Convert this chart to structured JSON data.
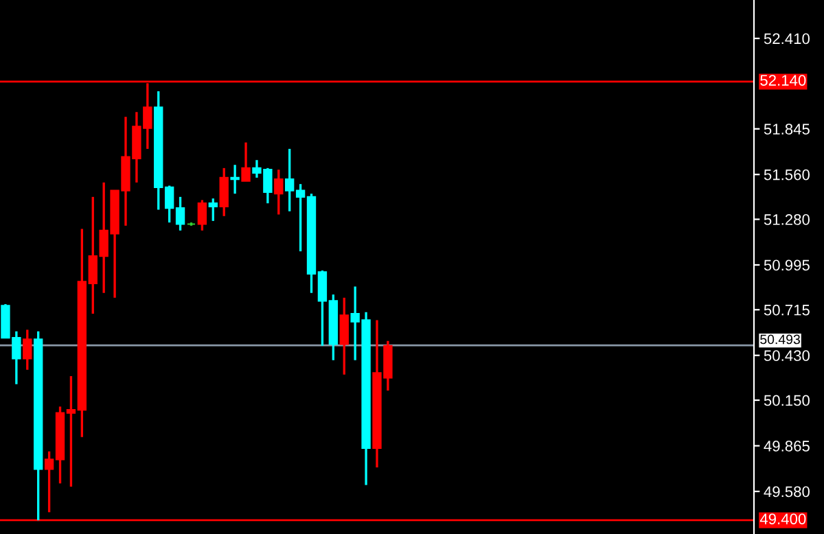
{
  "chart_data": {
    "type": "candlestick",
    "categories": [
      null,
      null,
      null,
      null,
      null,
      null,
      null,
      null,
      null,
      null,
      null,
      null,
      null,
      null,
      null,
      null,
      null,
      null,
      null,
      null,
      null,
      null,
      null,
      null,
      null,
      null,
      null,
      null,
      null,
      null,
      null,
      null,
      null,
      null,
      null,
      null,
      null,
      null,
      null,
      null,
      null,
      null,
      null,
      null,
      null,
      null,
      null,
      null,
      null,
      null,
      null,
      null,
      null,
      null,
      null,
      null,
      null,
      null,
      null,
      null,
      null,
      null,
      null,
      null,
      null,
      null,
      null,
      null,
      null
    ],
    "ohlc": [
      [
        50.74,
        50.75,
        50.54,
        50.54
      ],
      [
        50.54,
        50.58,
        50.25,
        50.41
      ],
      [
        50.41,
        50.59,
        50.34,
        50.53
      ],
      [
        50.53,
        50.58,
        49.4,
        49.72
      ],
      [
        49.72,
        49.83,
        49.45,
        49.78
      ],
      [
        49.78,
        50.11,
        49.63,
        50.07
      ],
      [
        50.07,
        50.3,
        49.61,
        50.09
      ],
      [
        50.09,
        51.22,
        49.92,
        50.89
      ],
      [
        50.88,
        51.42,
        50.69,
        51.05
      ],
      [
        51.05,
        51.51,
        50.82,
        51.21
      ],
      [
        51.19,
        51.46,
        50.79,
        51.46
      ],
      [
        51.46,
        51.92,
        51.24,
        51.67
      ],
      [
        51.66,
        51.95,
        51.51,
        51.86
      ],
      [
        51.85,
        52.13,
        51.72,
        51.98
      ],
      [
        51.98,
        52.08,
        51.34,
        51.48
      ],
      [
        51.48,
        51.49,
        51.26,
        51.35
      ],
      [
        51.35,
        51.42,
        51.21,
        51.25
      ],
      [
        51.25,
        51.26,
        51.24,
        51.25
      ],
      [
        51.25,
        51.4,
        51.21,
        51.38
      ],
      [
        51.38,
        51.41,
        51.27,
        51.36
      ],
      [
        51.36,
        51.6,
        51.3,
        51.54
      ],
      [
        51.54,
        51.62,
        51.44,
        51.53
      ],
      [
        51.52,
        51.76,
        51.52,
        51.6
      ],
      [
        51.6,
        51.65,
        51.54,
        51.57
      ],
      [
        51.59,
        51.6,
        51.38,
        51.45
      ],
      [
        51.44,
        51.59,
        51.31,
        51.53
      ],
      [
        51.53,
        51.72,
        51.33,
        51.46
      ],
      [
        51.46,
        51.5,
        51.08,
        51.42
      ],
      [
        51.42,
        51.44,
        50.82,
        50.94
      ],
      [
        50.95,
        50.96,
        50.49,
        50.77
      ],
      [
        50.77,
        50.81,
        50.4,
        50.5
      ],
      [
        50.5,
        50.79,
        50.31,
        50.68
      ],
      [
        50.69,
        50.86,
        50.4,
        50.64
      ],
      [
        50.65,
        50.7,
        49.62,
        49.85
      ],
      [
        49.85,
        50.65,
        49.73,
        50.32
      ],
      [
        50.29,
        50.52,
        50.21,
        50.49
      ],
      null,
      null,
      null,
      null,
      null,
      null,
      null,
      null,
      null,
      null,
      null,
      null,
      null,
      null,
      null,
      null,
      null,
      null,
      null,
      null,
      null,
      null,
      null,
      null,
      null,
      null,
      null,
      null,
      null,
      null,
      null,
      null,
      null
    ],
    "colors": [
      "#00ffff",
      "#00ffff",
      "#ff0000",
      "#00ffff",
      "#ff0000",
      "#ff0000",
      "#ff0000",
      "#ff0000",
      "#ff0000",
      "#ff0000",
      "#ff0000",
      "#ff0000",
      "#ff0000",
      "#ff0000",
      "#00ffff",
      "#00ffff",
      "#00ffff",
      "#32cd32",
      "#ff0000",
      "#00ffff",
      "#ff0000",
      "#00ffff",
      "#ff0000",
      "#00ffff",
      "#00ffff",
      "#ff0000",
      "#00ffff",
      "#00ffff",
      "#00ffff",
      "#00ffff",
      "#00ffff",
      "#ff0000",
      "#00ffff",
      "#00ffff",
      "#ff0000",
      "#ff0000",
      null,
      null,
      null,
      null,
      null,
      null,
      null,
      null,
      null,
      null,
      null,
      null,
      null,
      null,
      null,
      null,
      null,
      null,
      null,
      null,
      null,
      null,
      null,
      null,
      null,
      null,
      null,
      null,
      null,
      null,
      null,
      null,
      null
    ],
    "ylim": [
      49.314,
      52.65
    ],
    "yticks": [
      {
        "value": 52.41,
        "label": "52.410"
      },
      {
        "value": 51.845,
        "label": "51.845"
      },
      {
        "value": 51.56,
        "label": "51.560"
      },
      {
        "value": 51.28,
        "label": "51.280"
      },
      {
        "value": 50.995,
        "label": "50.995"
      },
      {
        "value": 50.715,
        "label": "50.715"
      },
      {
        "value": 50.43,
        "label": "50.430"
      },
      {
        "value": 50.15,
        "label": "50.150"
      },
      {
        "value": 49.865,
        "label": "49.865"
      },
      {
        "value": 49.58,
        "label": "49.580"
      }
    ],
    "ref_lines": [
      {
        "axis": "y",
        "value": 52.14,
        "label": "52.140",
        "color": "#ff0000"
      },
      {
        "axis": "y",
        "value": 49.4,
        "label": "49.400",
        "color": "#ff0000"
      },
      {
        "axis": "y",
        "value": 50.493,
        "label": "50.493",
        "color": "#8a98a8"
      }
    ],
    "tick_labels": "y",
    "grid": false
  }
}
